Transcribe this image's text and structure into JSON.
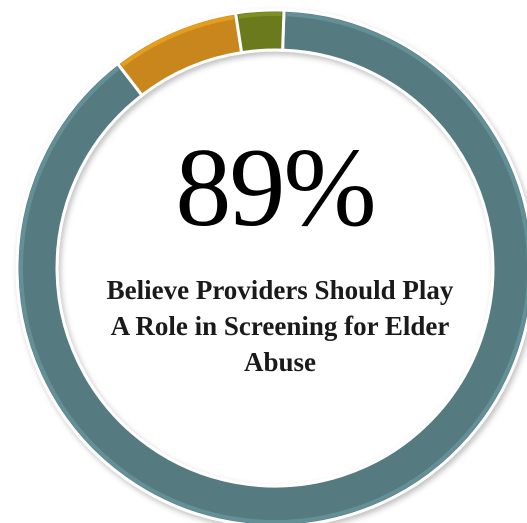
{
  "headline_value": "89%",
  "caption": "Believe Providers Should Play A Role in Screening for Elder Abuse",
  "chart_data": {
    "type": "pie",
    "variant": "donut",
    "title": "",
    "slices": [
      {
        "label": "",
        "value": 89,
        "color": "#557a80"
      },
      {
        "label": "",
        "value": 8,
        "color": "#c9861a"
      },
      {
        "label": "",
        "value": 3,
        "color": "#6b7a1e"
      }
    ],
    "start_angle_deg": 2
  }
}
